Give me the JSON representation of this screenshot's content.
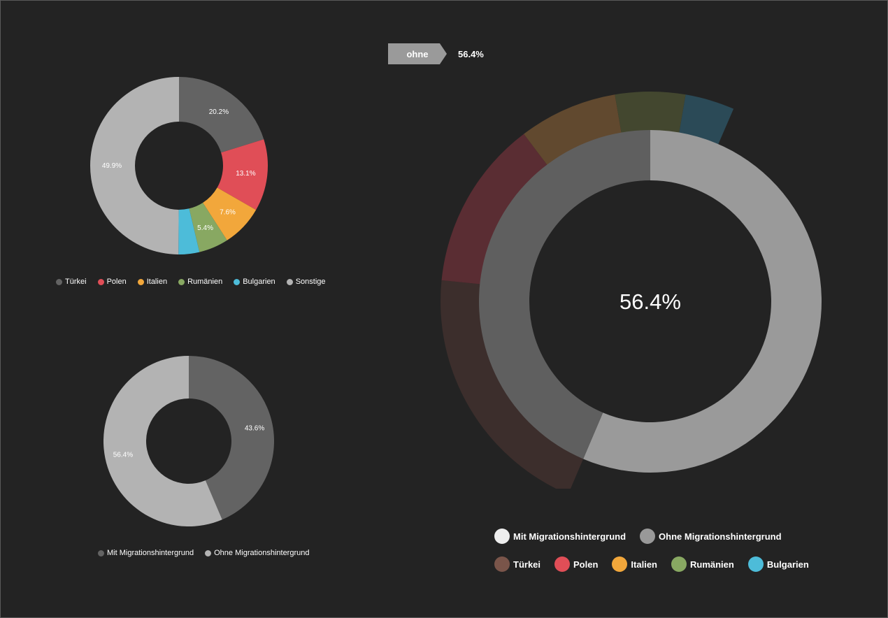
{
  "selector": {
    "label": "ohne",
    "value": "56.4%"
  },
  "chart_data": [
    {
      "type": "pie",
      "variant": "donut",
      "slices": [
        {
          "name": "Türkei",
          "value": 20.2,
          "label": "20.2%",
          "color": "#636363"
        },
        {
          "name": "Polen",
          "value": 13.1,
          "label": "13.1%",
          "color": "#e04e57"
        },
        {
          "name": "Italien",
          "value": 7.6,
          "label": "7.6%",
          "color": "#f2a73b"
        },
        {
          "name": "Rumänien",
          "value": 5.4,
          "label": "5.4%",
          "color": "#88a862"
        },
        {
          "name": "Bulgarien",
          "value": 3.8,
          "label": "",
          "color": "#4dbcd9"
        },
        {
          "name": "Sonstige",
          "value": 49.9,
          "label": "49.9%",
          "color": "#b3b3b3"
        }
      ],
      "legend": [
        "Türkei",
        "Polen",
        "Italien",
        "Rumänien",
        "Bulgarien",
        "Sonstige"
      ],
      "legend_position": "bottom"
    },
    {
      "type": "pie",
      "variant": "donut",
      "slices": [
        {
          "name": "Mit Migrationshintergrund",
          "value": 43.6,
          "label": "43.6%",
          "color": "#636363"
        },
        {
          "name": "Ohne Migrationshintergrund",
          "value": 56.4,
          "label": "56.4%",
          "color": "#b3b3b3"
        }
      ],
      "legend": [
        "Mit Migrationshintergrund",
        "Ohne Migrationshintergrund"
      ],
      "legend_position": "bottom"
    },
    {
      "type": "pie",
      "variant": "sunburst",
      "center_label": "56.4%",
      "inner_ring": [
        {
          "name": "Mit Migrationshintergrund",
          "value": 43.6,
          "color": "#5f5f5f"
        },
        {
          "name": "Ohne Migrationshintergrund",
          "value": 56.4,
          "color": "#9a9a9a"
        }
      ],
      "outer_ring": [
        {
          "name": "Türkei",
          "value": 20.2,
          "color": "#3c2e2c"
        },
        {
          "name": "Polen",
          "value": 13.1,
          "color": "#5a2d33"
        },
        {
          "name": "Italien",
          "value": 7.6,
          "color": "#61492f"
        },
        {
          "name": "Rumänien",
          "value": 5.4,
          "color": "#43472f"
        },
        {
          "name": "Bulgarien",
          "value": 3.8,
          "color": "#2b4a57"
        }
      ],
      "legend_rows": [
        [
          {
            "name": "Mit Migrationshintergrund",
            "color": "#eeeeee"
          },
          {
            "name": "Ohne Migrationshintergrund",
            "color": "#999999"
          }
        ],
        [
          {
            "name": "Türkei",
            "color": "#7a554a"
          },
          {
            "name": "Polen",
            "color": "#e04e57"
          },
          {
            "name": "Italien",
            "color": "#f2a73b"
          },
          {
            "name": "Rumänien",
            "color": "#88a862"
          },
          {
            "name": "Bulgarien",
            "color": "#4dbcd9"
          }
        ]
      ],
      "legend_position": "bottom"
    }
  ]
}
